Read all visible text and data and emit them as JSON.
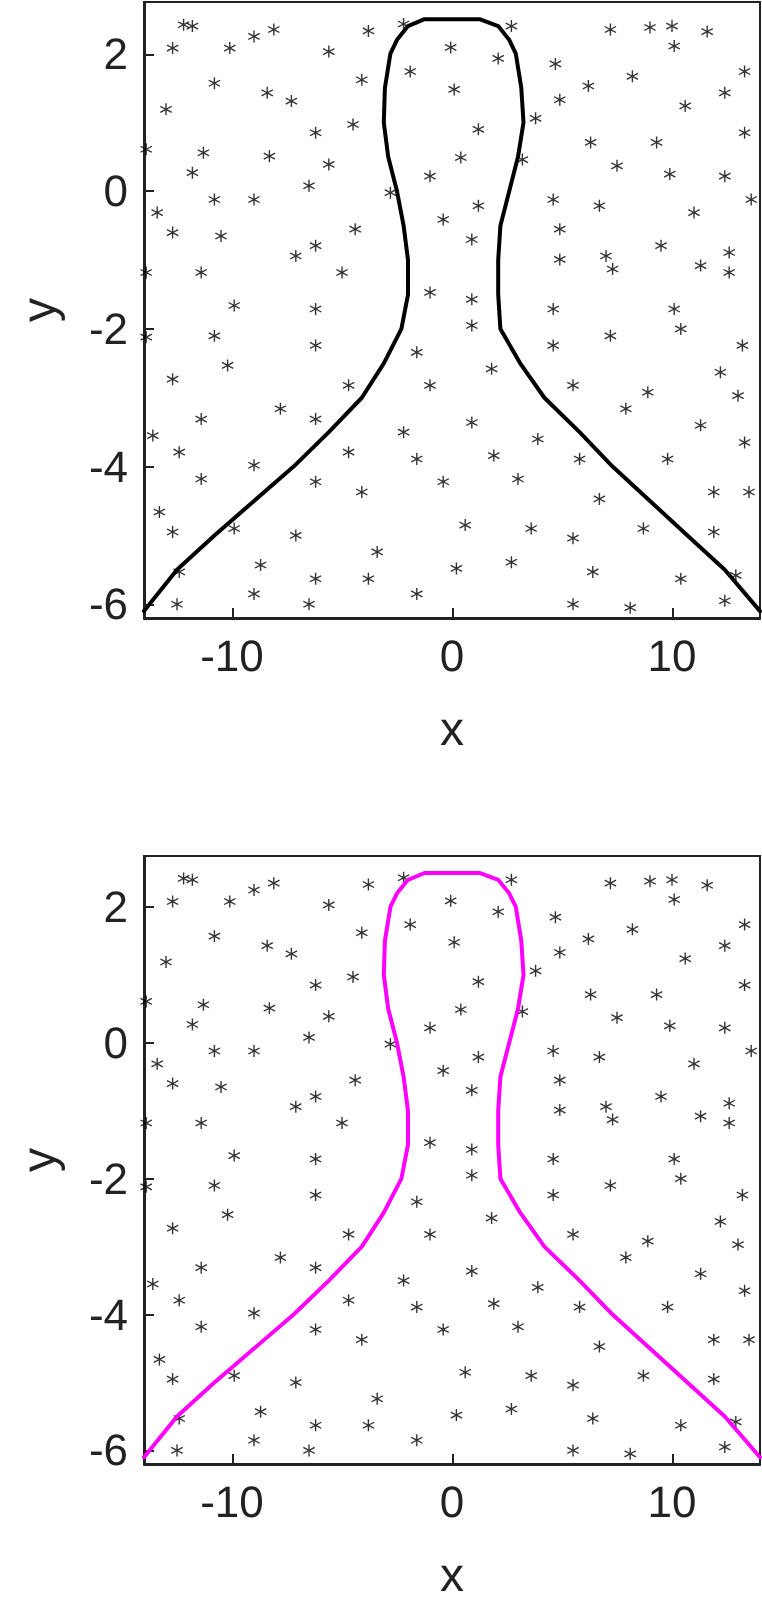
{
  "chart_data": [
    {
      "type": "scatter",
      "xlabel": "x",
      "ylabel": "y",
      "xlim": [
        -14,
        14
      ],
      "ylim": [
        -6.2,
        2.75
      ],
      "xticks": [
        -10,
        0,
        10
      ],
      "yticks": [
        -6,
        -4,
        -2,
        0,
        2
      ],
      "grid": false,
      "series": [
        {
          "type": "scatter",
          "color": "#000000",
          "marker": "star",
          "x": [
            -12.2,
            -11.8,
            -9.0,
            -8.1,
            -3.8,
            -2.2,
            -0.06,
            2.7,
            7.2,
            9.0,
            10.0,
            11.6,
            -12.7,
            -10.1,
            -5.6,
            -1.9,
            2.1,
            4.7,
            10.1,
            13.3,
            -13.0,
            -10.8,
            -8.4,
            -7.3,
            -4.1,
            0.1,
            1.2,
            4.9,
            6.2,
            8.2,
            10.6,
            12.4,
            -6.2,
            -4.5,
            3.8,
            6.3,
            9.3,
            13.3,
            -13.9,
            -11.3,
            -8.3,
            -5.6,
            0.4,
            3.2,
            7.5,
            9.9,
            12.4,
            -13.4,
            -11.8,
            -10.8,
            -9.0,
            -6.5,
            -2.8,
            -1.0,
            1.2,
            4.6,
            6.7,
            11.0,
            13.6,
            -12.7,
            -10.5,
            -6.2,
            -4.4,
            -0.4,
            0.9,
            4.9,
            7.0,
            9.5,
            12.6,
            -13.9,
            -11.4,
            -7.1,
            -5.0,
            -1.0,
            4.9,
            7.3,
            11.3,
            12.6,
            -9.9,
            -6.2,
            0.9,
            4.6,
            10.1,
            -13.9,
            -10.8,
            -6.2,
            -1.6,
            0.9,
            4.6,
            7.2,
            10.4,
            13.2,
            -12.7,
            -10.2,
            -4.7,
            -1.0,
            1.8,
            5.5,
            8.9,
            12.2,
            -13.6,
            -11.4,
            -7.8,
            -6.2,
            -2.2,
            0.9,
            3.9,
            7.9,
            11.3,
            13.0,
            -12.4,
            -9.0,
            -4.7,
            -1.6,
            1.9,
            5.8,
            9.8,
            13.3,
            -13.3,
            -11.4,
            -6.2,
            -4.1,
            -0.4,
            3.0,
            6.7,
            11.9,
            13.5,
            -12.7,
            -9.9,
            -7.1,
            -3.4,
            0.6,
            3.6,
            5.5,
            8.7,
            11.9,
            -12.4,
            -8.7,
            -6.2,
            -3.8,
            0.2,
            2.7,
            6.4,
            10.4,
            12.9,
            -12.5,
            -9.0,
            -6.5,
            -1.6,
            5.5,
            8.1,
            12.4
          ],
          "values": [
            2.42,
            2.4,
            2.25,
            2.35,
            2.33,
            2.43,
            2.09,
            2.4,
            2.35,
            2.38,
            2.4,
            2.32,
            2.08,
            2.08,
            2.03,
            1.74,
            1.93,
            1.85,
            2.11,
            1.74,
            1.19,
            1.57,
            1.43,
            1.31,
            1.62,
            1.48,
            0.9,
            1.33,
            1.53,
            1.67,
            1.24,
            1.43,
            0.85,
            0.97,
            1.06,
            0.71,
            0.71,
            0.85,
            0.61,
            0.56,
            0.51,
            0.39,
            0.49,
            0.46,
            0.37,
            0.25,
            0.22,
            -0.31,
            0.27,
            -0.12,
            -0.12,
            0.08,
            -0.02,
            0.22,
            -0.21,
            -0.12,
            -0.21,
            -0.31,
            -0.12,
            -0.6,
            -0.65,
            -0.79,
            -0.55,
            -0.41,
            -0.7,
            -0.55,
            -0.94,
            -0.79,
            -0.89,
            -1.18,
            -1.18,
            -0.94,
            -1.18,
            -1.47,
            -0.99,
            -1.13,
            -1.08,
            -1.18,
            -1.66,
            -1.71,
            -1.57,
            -1.71,
            -1.71,
            -2.12,
            -2.1,
            -2.24,
            -2.34,
            -1.95,
            -2.24,
            -2.1,
            -2.0,
            -2.24,
            -2.73,
            -2.53,
            -2.82,
            -2.82,
            -2.58,
            -2.82,
            -2.92,
            -2.63,
            -3.55,
            -3.31,
            -3.16,
            -3.31,
            -3.5,
            -3.36,
            -3.6,
            -3.16,
            -3.4,
            -2.97,
            -3.79,
            -3.98,
            -3.79,
            -3.89,
            -3.84,
            -3.89,
            -3.89,
            -3.65,
            -4.66,
            -4.18,
            -4.22,
            -4.37,
            -4.22,
            -4.18,
            -4.47,
            -4.37,
            -4.37,
            -4.95,
            -4.9,
            -5.0,
            -5.24,
            -4.85,
            -4.9,
            -5.04,
            -4.9,
            -4.95,
            -5.53,
            -5.43,
            -5.63,
            -5.63,
            -5.48,
            -5.39,
            -5.53,
            -5.63,
            -5.58,
            -6.0,
            -5.85,
            -6.0,
            -5.85,
            -6.0,
            -6.05,
            -5.95
          ]
        },
        {
          "type": "line",
          "color": "#000000",
          "marker": "none",
          "line_style": "solid",
          "x": [
            -14,
            -12.5,
            -10.8,
            -9,
            -7.2,
            -5.6,
            -4.1,
            -3.1,
            -2.3,
            -2.0,
            -2.0,
            -2.2,
            -2.5,
            -2.9,
            -3.1,
            -3.05,
            -2.8,
            -2.5,
            -2.0,
            -1.25,
            1.25,
            2.1,
            2.6,
            2.9,
            3.15,
            3.25,
            3.0,
            2.6,
            2.2,
            2.1,
            2.1,
            2.2,
            3.1,
            4.2,
            5.8,
            7.3,
            9,
            10.7,
            12.4,
            14
          ],
          "values": [
            -6.1,
            -5.5,
            -5,
            -4.5,
            -4,
            -3.5,
            -3,
            -2.5,
            -2,
            -1.5,
            -1,
            -0.5,
            0,
            0.5,
            1,
            1.5,
            2,
            2.2,
            2.4,
            2.5,
            2.5,
            2.4,
            2.2,
            2,
            1.5,
            1,
            0.5,
            0,
            -0.5,
            -1,
            -1.5,
            -2,
            -2.5,
            -3,
            -3.5,
            -4,
            -4.5,
            -5,
            -5.5,
            -6.1
          ]
        }
      ]
    },
    {
      "type": "scatter",
      "xlabel": "x",
      "ylabel": "y",
      "xlim": [
        -14,
        14
      ],
      "ylim": [
        -6.2,
        2.75
      ],
      "xticks": [
        -10,
        0,
        10
      ],
      "yticks": [
        -6,
        -4,
        -2,
        0,
        2
      ],
      "grid": false,
      "series": [
        {
          "type": "scatter",
          "color": "#000000",
          "marker": "star",
          "x": [
            -12.2,
            -11.8,
            -9.0,
            -8.1,
            -3.8,
            -2.2,
            -0.06,
            2.7,
            7.2,
            9.0,
            10.0,
            11.6,
            -12.7,
            -10.1,
            -5.6,
            -1.9,
            2.1,
            4.7,
            10.1,
            13.3,
            -13.0,
            -10.8,
            -8.4,
            -7.3,
            -4.1,
            0.1,
            1.2,
            4.9,
            6.2,
            8.2,
            10.6,
            12.4,
            -6.2,
            -4.5,
            3.8,
            6.3,
            9.3,
            13.3,
            -13.9,
            -11.3,
            -8.3,
            -5.6,
            0.4,
            3.2,
            7.5,
            9.9,
            12.4,
            -13.4,
            -11.8,
            -10.8,
            -9.0,
            -6.5,
            -2.8,
            -1.0,
            1.2,
            4.6,
            6.7,
            11.0,
            13.6,
            -12.7,
            -10.5,
            -6.2,
            -4.4,
            -0.4,
            0.9,
            4.9,
            7.0,
            9.5,
            12.6,
            -13.9,
            -11.4,
            -7.1,
            -5.0,
            -1.0,
            4.9,
            7.3,
            11.3,
            12.6,
            -9.9,
            -6.2,
            0.9,
            4.6,
            10.1,
            -13.9,
            -10.8,
            -6.2,
            -1.6,
            0.9,
            4.6,
            7.2,
            10.4,
            13.2,
            -12.7,
            -10.2,
            -4.7,
            -1.0,
            1.8,
            5.5,
            8.9,
            12.2,
            -13.6,
            -11.4,
            -7.8,
            -6.2,
            -2.2,
            0.9,
            3.9,
            7.9,
            11.3,
            13.0,
            -12.4,
            -9.0,
            -4.7,
            -1.6,
            1.9,
            5.8,
            9.8,
            13.3,
            -13.3,
            -11.4,
            -6.2,
            -4.1,
            -0.4,
            3.0,
            6.7,
            11.9,
            13.5,
            -12.7,
            -9.9,
            -7.1,
            -3.4,
            0.6,
            3.6,
            5.5,
            8.7,
            11.9,
            -12.4,
            -8.7,
            -6.2,
            -3.8,
            0.2,
            2.7,
            6.4,
            10.4,
            12.9,
            -12.5,
            -9.0,
            -6.5,
            -1.6,
            5.5,
            8.1,
            12.4
          ],
          "values": [
            2.42,
            2.4,
            2.25,
            2.35,
            2.33,
            2.43,
            2.09,
            2.4,
            2.35,
            2.38,
            2.4,
            2.32,
            2.08,
            2.08,
            2.03,
            1.74,
            1.93,
            1.85,
            2.11,
            1.74,
            1.19,
            1.57,
            1.43,
            1.31,
            1.62,
            1.48,
            0.9,
            1.33,
            1.53,
            1.67,
            1.24,
            1.43,
            0.85,
            0.97,
            1.06,
            0.71,
            0.71,
            0.85,
            0.61,
            0.56,
            0.51,
            0.39,
            0.49,
            0.46,
            0.37,
            0.25,
            0.22,
            -0.31,
            0.27,
            -0.12,
            -0.12,
            0.08,
            -0.02,
            0.22,
            -0.21,
            -0.12,
            -0.21,
            -0.31,
            -0.12,
            -0.6,
            -0.65,
            -0.79,
            -0.55,
            -0.41,
            -0.7,
            -0.55,
            -0.94,
            -0.79,
            -0.89,
            -1.18,
            -1.18,
            -0.94,
            -1.18,
            -1.47,
            -0.99,
            -1.13,
            -1.08,
            -1.18,
            -1.66,
            -1.71,
            -1.57,
            -1.71,
            -1.71,
            -2.12,
            -2.1,
            -2.24,
            -2.34,
            -1.95,
            -2.24,
            -2.1,
            -2.0,
            -2.24,
            -2.73,
            -2.53,
            -2.82,
            -2.82,
            -2.58,
            -2.82,
            -2.92,
            -2.63,
            -3.55,
            -3.31,
            -3.16,
            -3.31,
            -3.5,
            -3.36,
            -3.6,
            -3.16,
            -3.4,
            -2.97,
            -3.79,
            -3.98,
            -3.79,
            -3.89,
            -3.84,
            -3.89,
            -3.89,
            -3.65,
            -4.66,
            -4.18,
            -4.22,
            -4.37,
            -4.22,
            -4.18,
            -4.47,
            -4.37,
            -4.37,
            -4.95,
            -4.9,
            -5.0,
            -5.24,
            -4.85,
            -4.9,
            -5.04,
            -4.9,
            -4.95,
            -5.53,
            -5.43,
            -5.63,
            -5.63,
            -5.48,
            -5.39,
            -5.53,
            -5.63,
            -5.58,
            -6.0,
            -5.85,
            -6.0,
            -5.85,
            -6.0,
            -6.05,
            -5.95
          ]
        },
        {
          "type": "line",
          "color": "#ff00ff",
          "marker": "none",
          "line_style": "solid",
          "x": [
            -14,
            -12.5,
            -10.8,
            -9,
            -7.2,
            -5.6,
            -4.1,
            -3.1,
            -2.3,
            -2.0,
            -2.0,
            -2.2,
            -2.5,
            -2.9,
            -3.1,
            -3.05,
            -2.8,
            -2.5,
            -2.0,
            -1.25,
            1.25,
            2.1,
            2.6,
            2.9,
            3.15,
            3.25,
            3.0,
            2.6,
            2.2,
            2.1,
            2.1,
            2.2,
            3.1,
            4.2,
            5.8,
            7.3,
            9,
            10.7,
            12.4,
            14
          ],
          "values": [
            -6.1,
            -5.5,
            -5,
            -4.5,
            -4,
            -3.5,
            -3,
            -2.5,
            -2,
            -1.5,
            -1,
            -0.5,
            0,
            0.5,
            1,
            1.5,
            2,
            2.2,
            2.4,
            2.5,
            2.5,
            2.4,
            2.2,
            2,
            1.5,
            1,
            0.5,
            0,
            -0.5,
            -1,
            -1.5,
            -2,
            -2.5,
            -3,
            -3.5,
            -4,
            -4.5,
            -5,
            -5.5,
            -6.1
          ]
        }
      ]
    }
  ]
}
